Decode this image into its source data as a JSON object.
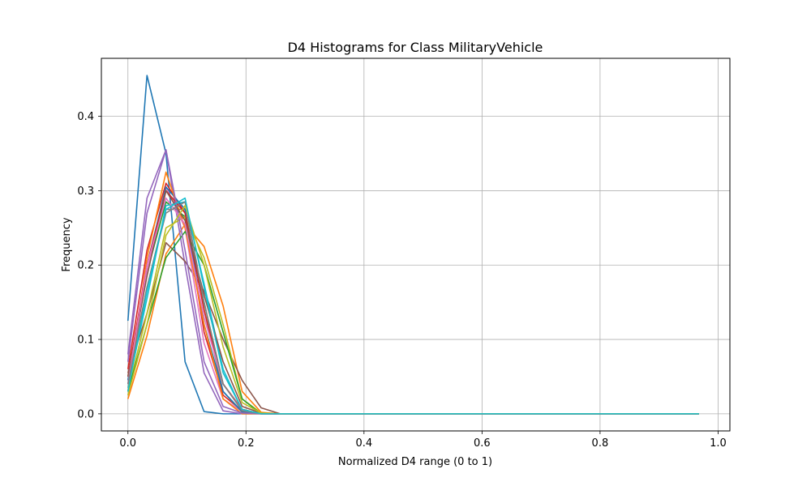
{
  "chart_data": {
    "type": "line",
    "title": "D4 Histograms for Class MilitaryVehicle",
    "xlabel": "Normalized D4 range (0 to 1)",
    "ylabel": "Frequency",
    "xlim": [
      -0.045,
      1.02
    ],
    "ylim": [
      -0.023,
      0.478
    ],
    "xticks": [
      0.0,
      0.2,
      0.4,
      0.6,
      0.8,
      1.0
    ],
    "xtick_labels": [
      "0.0",
      "0.2",
      "0.4",
      "0.6",
      "0.8",
      "1.0"
    ],
    "yticks": [
      0.0,
      0.1,
      0.2,
      0.3,
      0.4
    ],
    "ytick_labels": [
      "0.0",
      "0.1",
      "0.2",
      "0.3",
      "0.4"
    ],
    "grid": true,
    "x": [
      0.0,
      0.0323,
      0.0645,
      0.0968,
      0.129,
      0.1613,
      0.1935,
      0.2258,
      0.2581,
      0.2903,
      0.3226,
      0.3548,
      0.3871,
      0.4194,
      0.4516,
      0.4839,
      0.5161,
      0.5484,
      0.5806,
      0.6129,
      0.6452,
      0.6774,
      0.7097,
      0.7419,
      0.7742,
      0.8065,
      0.8387,
      0.871,
      0.9032,
      0.9355,
      0.9677
    ],
    "series": [
      {
        "color": "#1f77b4",
        "values": [
          0.125,
          0.455,
          0.35,
          0.07,
          0.003,
          0.0,
          0.0,
          0.0,
          0.0,
          0.0,
          0.0,
          0.0,
          0.0,
          0.0,
          0.0,
          0.0,
          0.0,
          0.0,
          0.0,
          0.0,
          0.0,
          0.0,
          0.0,
          0.0,
          0.0,
          0.0,
          0.0,
          0.0,
          0.0,
          0.0,
          0.0
        ]
      },
      {
        "color": "#ff7f0e",
        "values": [
          0.02,
          0.105,
          0.215,
          0.255,
          0.225,
          0.145,
          0.03,
          0.002,
          0.0,
          0.0,
          0.0,
          0.0,
          0.0,
          0.0,
          0.0,
          0.0,
          0.0,
          0.0,
          0.0,
          0.0,
          0.0,
          0.0,
          0.0,
          0.0,
          0.0,
          0.0,
          0.0,
          0.0,
          0.0,
          0.0,
          0.0
        ]
      },
      {
        "color": "#2ca02c",
        "values": [
          0.05,
          0.19,
          0.285,
          0.265,
          0.15,
          0.04,
          0.006,
          0.0,
          0.0,
          0.0,
          0.0,
          0.0,
          0.0,
          0.0,
          0.0,
          0.0,
          0.0,
          0.0,
          0.0,
          0.0,
          0.0,
          0.0,
          0.0,
          0.0,
          0.0,
          0.0,
          0.0,
          0.0,
          0.0,
          0.0,
          0.0
        ]
      },
      {
        "color": "#d62728",
        "values": [
          0.06,
          0.22,
          0.31,
          0.27,
          0.11,
          0.025,
          0.004,
          0.0,
          0.0,
          0.0,
          0.0,
          0.0,
          0.0,
          0.0,
          0.0,
          0.0,
          0.0,
          0.0,
          0.0,
          0.0,
          0.0,
          0.0,
          0.0,
          0.0,
          0.0,
          0.0,
          0.0,
          0.0,
          0.0,
          0.0,
          0.0
        ]
      },
      {
        "color": "#9467bd",
        "values": [
          0.08,
          0.29,
          0.355,
          0.2,
          0.055,
          0.004,
          0.0,
          0.0,
          0.0,
          0.0,
          0.0,
          0.0,
          0.0,
          0.0,
          0.0,
          0.0,
          0.0,
          0.0,
          0.0,
          0.0,
          0.0,
          0.0,
          0.0,
          0.0,
          0.0,
          0.0,
          0.0,
          0.0,
          0.0,
          0.0,
          0.0
        ]
      },
      {
        "color": "#8c564b",
        "values": [
          0.055,
          0.135,
          0.23,
          0.205,
          0.165,
          0.1,
          0.045,
          0.008,
          0.0,
          0.0,
          0.0,
          0.0,
          0.0,
          0.0,
          0.0,
          0.0,
          0.0,
          0.0,
          0.0,
          0.0,
          0.0,
          0.0,
          0.0,
          0.0,
          0.0,
          0.0,
          0.0,
          0.0,
          0.0,
          0.0,
          0.0
        ]
      },
      {
        "color": "#e377c2",
        "values": [
          0.04,
          0.19,
          0.305,
          0.25,
          0.095,
          0.02,
          0.003,
          0.0,
          0.0,
          0.0,
          0.0,
          0.0,
          0.0,
          0.0,
          0.0,
          0.0,
          0.0,
          0.0,
          0.0,
          0.0,
          0.0,
          0.0,
          0.0,
          0.0,
          0.0,
          0.0,
          0.0,
          0.0,
          0.0,
          0.0,
          0.0
        ]
      },
      {
        "color": "#7f7f7f",
        "values": [
          0.045,
          0.17,
          0.275,
          0.275,
          0.14,
          0.03,
          0.002,
          0.0,
          0.0,
          0.0,
          0.0,
          0.0,
          0.0,
          0.0,
          0.0,
          0.0,
          0.0,
          0.0,
          0.0,
          0.0,
          0.0,
          0.0,
          0.0,
          0.0,
          0.0,
          0.0,
          0.0,
          0.0,
          0.0,
          0.0,
          0.0
        ]
      },
      {
        "color": "#bcbd22",
        "values": [
          0.03,
          0.135,
          0.25,
          0.265,
          0.21,
          0.12,
          0.02,
          0.001,
          0.0,
          0.0,
          0.0,
          0.0,
          0.0,
          0.0,
          0.0,
          0.0,
          0.0,
          0.0,
          0.0,
          0.0,
          0.0,
          0.0,
          0.0,
          0.0,
          0.0,
          0.0,
          0.0,
          0.0,
          0.0,
          0.0,
          0.0
        ]
      },
      {
        "color": "#17becf",
        "values": [
          0.035,
          0.155,
          0.28,
          0.285,
          0.175,
          0.06,
          0.005,
          0.0,
          0.0,
          0.0,
          0.0,
          0.0,
          0.0,
          0.0,
          0.0,
          0.0,
          0.0,
          0.0,
          0.0,
          0.0,
          0.0,
          0.0,
          0.0,
          0.0,
          0.0,
          0.0,
          0.0,
          0.0,
          0.0,
          0.0,
          0.0
        ]
      },
      {
        "color": "#1f77b4",
        "values": [
          0.045,
          0.2,
          0.305,
          0.275,
          0.12,
          0.03,
          0.003,
          0.0,
          0.0,
          0.0,
          0.0,
          0.0,
          0.0,
          0.0,
          0.0,
          0.0,
          0.0,
          0.0,
          0.0,
          0.0,
          0.0,
          0.0,
          0.0,
          0.0,
          0.0,
          0.0,
          0.0,
          0.0,
          0.0,
          0.0,
          0.0
        ]
      },
      {
        "color": "#ff7f0e",
        "values": [
          0.03,
          0.21,
          0.325,
          0.25,
          0.12,
          0.02,
          0.0,
          0.0,
          0.0,
          0.0,
          0.0,
          0.0,
          0.0,
          0.0,
          0.0,
          0.0,
          0.0,
          0.0,
          0.0,
          0.0,
          0.0,
          0.0,
          0.0,
          0.0,
          0.0,
          0.0,
          0.0,
          0.0,
          0.0,
          0.0,
          0.0
        ]
      },
      {
        "color": "#2ca02c",
        "values": [
          0.03,
          0.12,
          0.21,
          0.245,
          0.2,
          0.11,
          0.02,
          0.0,
          0.0,
          0.0,
          0.0,
          0.0,
          0.0,
          0.0,
          0.0,
          0.0,
          0.0,
          0.0,
          0.0,
          0.0,
          0.0,
          0.0,
          0.0,
          0.0,
          0.0,
          0.0,
          0.0,
          0.0,
          0.0,
          0.0,
          0.0
        ]
      },
      {
        "color": "#d62728",
        "values": [
          0.05,
          0.2,
          0.3,
          0.27,
          0.14,
          0.04,
          0.006,
          0.0,
          0.0,
          0.0,
          0.0,
          0.0,
          0.0,
          0.0,
          0.0,
          0.0,
          0.0,
          0.0,
          0.0,
          0.0,
          0.0,
          0.0,
          0.0,
          0.0,
          0.0,
          0.0,
          0.0,
          0.0,
          0.0,
          0.0,
          0.0
        ]
      },
      {
        "color": "#9467bd",
        "values": [
          0.07,
          0.27,
          0.355,
          0.22,
          0.07,
          0.01,
          0.001,
          0.0,
          0.0,
          0.0,
          0.0,
          0.0,
          0.0,
          0.0,
          0.0,
          0.0,
          0.0,
          0.0,
          0.0,
          0.0,
          0.0,
          0.0,
          0.0,
          0.0,
          0.0,
          0.0,
          0.0,
          0.0,
          0.0,
          0.0,
          0.0
        ]
      },
      {
        "color": "#8c564b",
        "values": [
          0.05,
          0.185,
          0.3,
          0.26,
          0.16,
          0.07,
          0.01,
          0.001,
          0.0,
          0.0,
          0.0,
          0.0,
          0.0,
          0.0,
          0.0,
          0.0,
          0.0,
          0.0,
          0.0,
          0.0,
          0.0,
          0.0,
          0.0,
          0.0,
          0.0,
          0.0,
          0.0,
          0.0,
          0.0,
          0.0,
          0.0
        ]
      },
      {
        "color": "#e377c2",
        "values": [
          0.04,
          0.2,
          0.29,
          0.255,
          0.13,
          0.04,
          0.005,
          0.0,
          0.0,
          0.0,
          0.0,
          0.0,
          0.0,
          0.0,
          0.0,
          0.0,
          0.0,
          0.0,
          0.0,
          0.0,
          0.0,
          0.0,
          0.0,
          0.0,
          0.0,
          0.0,
          0.0,
          0.0,
          0.0,
          0.0,
          0.0
        ]
      },
      {
        "color": "#7f7f7f",
        "values": [
          0.04,
          0.17,
          0.27,
          0.285,
          0.15,
          0.04,
          0.004,
          0.0,
          0.0,
          0.0,
          0.0,
          0.0,
          0.0,
          0.0,
          0.0,
          0.0,
          0.0,
          0.0,
          0.0,
          0.0,
          0.0,
          0.0,
          0.0,
          0.0,
          0.0,
          0.0,
          0.0,
          0.0,
          0.0,
          0.0,
          0.0
        ]
      },
      {
        "color": "#bcbd22",
        "values": [
          0.025,
          0.12,
          0.24,
          0.28,
          0.2,
          0.09,
          0.015,
          0.001,
          0.0,
          0.0,
          0.0,
          0.0,
          0.0,
          0.0,
          0.0,
          0.0,
          0.0,
          0.0,
          0.0,
          0.0,
          0.0,
          0.0,
          0.0,
          0.0,
          0.0,
          0.0,
          0.0,
          0.0,
          0.0,
          0.0,
          0.0
        ]
      },
      {
        "color": "#17becf",
        "values": [
          0.03,
          0.165,
          0.275,
          0.29,
          0.17,
          0.055,
          0.006,
          0.0,
          0.0,
          0.0,
          0.0,
          0.0,
          0.0,
          0.0,
          0.0,
          0.0,
          0.0,
          0.0,
          0.0,
          0.0,
          0.0,
          0.0,
          0.0,
          0.0,
          0.0,
          0.0,
          0.0,
          0.0,
          0.0,
          0.0,
          0.0
        ]
      }
    ]
  }
}
